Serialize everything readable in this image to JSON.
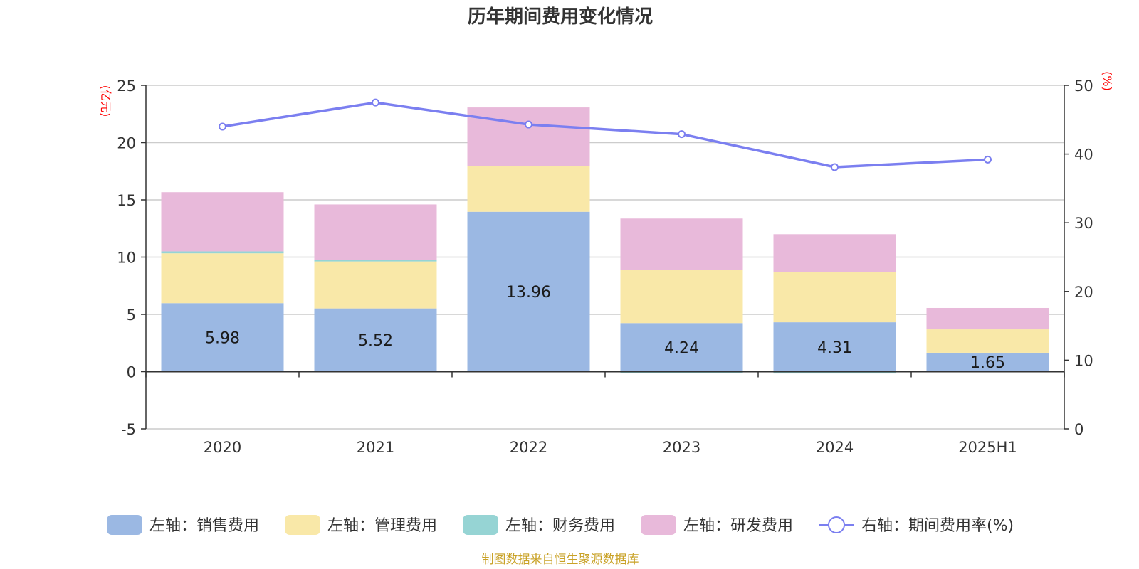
{
  "chart_data": {
    "type": "bar",
    "title": "历年期间费用变化情况",
    "categories": [
      "2020",
      "2021",
      "2022",
      "2023",
      "2024",
      "2025H1"
    ],
    "left_axis": {
      "unit": "(亿元)",
      "ylim": [
        -5,
        25
      ],
      "ticks": [
        "-5",
        "0",
        "5",
        "10",
        "15",
        "20",
        "25"
      ]
    },
    "right_axis": {
      "unit": "(%)",
      "ylim": [
        0,
        50
      ],
      "ticks": [
        "0",
        "10",
        "20",
        "30",
        "40",
        "50"
      ]
    },
    "series": [
      {
        "name": "左轴：销售费用",
        "type": "bar",
        "axis": "left",
        "color": "#9bb8e3",
        "values": [
          5.98,
          5.52,
          13.96,
          4.24,
          4.31,
          1.65
        ],
        "data_labels": [
          "5.98",
          "5.52",
          "13.96",
          "4.24",
          "4.31",
          "1.65"
        ]
      },
      {
        "name": "左轴：管理费用",
        "type": "bar",
        "axis": "left",
        "color": "#f9e8a8",
        "values": [
          4.35,
          4.1,
          3.97,
          4.66,
          4.36,
          2.04
        ]
      },
      {
        "name": "左轴：财务费用",
        "type": "bar",
        "axis": "left",
        "color": "#96d4d4",
        "values": [
          0.17,
          0.12,
          0.0,
          -0.12,
          -0.16,
          0.0
        ]
      },
      {
        "name": "左轴：研发费用",
        "type": "bar",
        "axis": "left",
        "color": "#e8b9da",
        "values": [
          5.17,
          4.86,
          5.14,
          4.47,
          3.33,
          1.87
        ]
      },
      {
        "name": "右轴：期间费用率(%)",
        "type": "line",
        "axis": "right",
        "color": "#7b7ff0",
        "values": [
          44.0,
          47.5,
          44.3,
          42.9,
          38.1,
          39.2
        ]
      }
    ],
    "grid": true,
    "legend_position": "bottom"
  },
  "source_note": "制图数据来自恒生聚源数据库"
}
